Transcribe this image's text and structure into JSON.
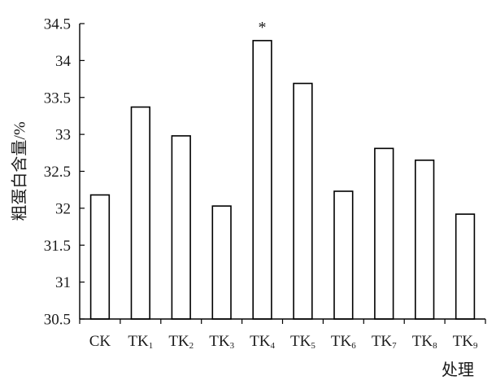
{
  "chart_data": {
    "type": "bar",
    "title": "",
    "ylabel": "粗蛋白含量/%",
    "xlabel": "处理",
    "ylim": [
      30.5,
      34.5
    ],
    "yticks": [
      "30.5",
      "31",
      "31.5",
      "32",
      "32.5",
      "33",
      "33.5",
      "34",
      "34.5"
    ],
    "grid": false,
    "categories": [
      {
        "base": "CK",
        "sub": ""
      },
      {
        "base": "TK",
        "sub": "1"
      },
      {
        "base": "TK",
        "sub": "2"
      },
      {
        "base": "TK",
        "sub": "3"
      },
      {
        "base": "TK",
        "sub": "4"
      },
      {
        "base": "TK",
        "sub": "5"
      },
      {
        "base": "TK",
        "sub": "6"
      },
      {
        "base": "TK",
        "sub": "7"
      },
      {
        "base": "TK",
        "sub": "8"
      },
      {
        "base": "TK",
        "sub": "9"
      }
    ],
    "values": [
      32.18,
      33.37,
      32.98,
      32.03,
      34.27,
      33.69,
      32.23,
      32.81,
      32.65,
      31.92
    ],
    "annotations": [
      {
        "category_index": 4,
        "text": "*"
      }
    ],
    "colors": {
      "bar_fill": "#ffffff",
      "bar_stroke": "#000000",
      "axis": "#000000"
    }
  }
}
